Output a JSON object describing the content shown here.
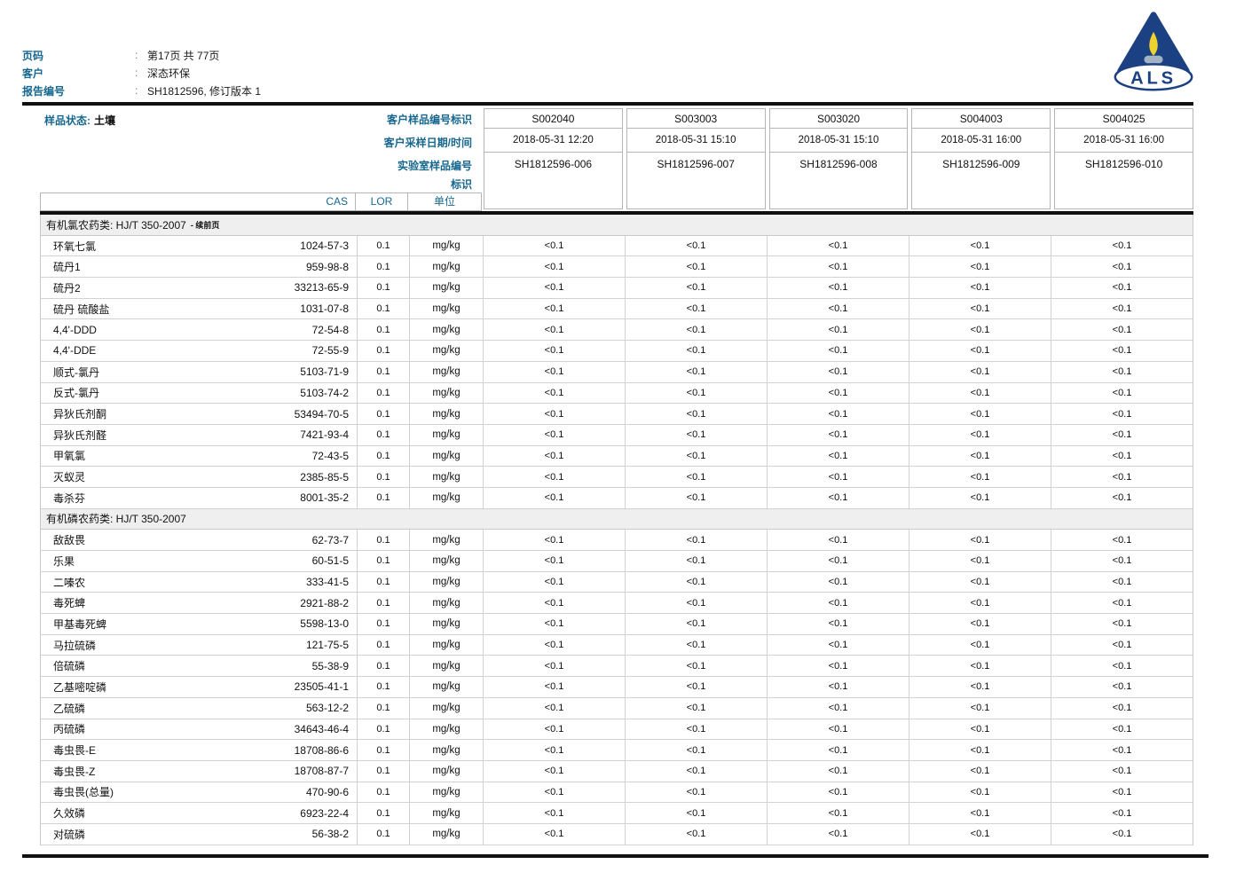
{
  "report_header": {
    "separator": ":",
    "fields": [
      {
        "label": "页码",
        "value": "第17页 共 77页"
      },
      {
        "label": "客户",
        "value": "深态环保"
      },
      {
        "label": "报告编号",
        "value": "SH1812596, 修订版本 1"
      }
    ]
  },
  "logo": {
    "letters": "ALS"
  },
  "sample_info": {
    "matrix_label": "样品状态:",
    "matrix_value": "土壤",
    "row_labels": [
      "客户样品编号标识",
      "客户采样日期/时间",
      "实验室样品编号",
      "标识"
    ],
    "samples": [
      {
        "client_id": "S002040",
        "datetime": "2018-05-31 12:20",
        "lab_id": "SH1812596-006"
      },
      {
        "client_id": "S003003",
        "datetime": "2018-05-31 15:10",
        "lab_id": "SH1812596-007"
      },
      {
        "client_id": "S003020",
        "datetime": "2018-05-31 15:10",
        "lab_id": "SH1812596-008"
      },
      {
        "client_id": "S004003",
        "datetime": "2018-05-31 16:00",
        "lab_id": "SH1812596-009"
      },
      {
        "client_id": "S004025",
        "datetime": "2018-05-31 16:00",
        "lab_id": "SH1812596-010"
      }
    ]
  },
  "table": {
    "header": {
      "cas": "CAS",
      "lor": "LOR",
      "unit": "单位"
    },
    "sections": [
      {
        "title": "有机氯农药类: HJ/T 350-2007",
        "suffix": "- 续前页",
        "rows": [
          {
            "name": "环氧七氯",
            "cas": "1024-57-3",
            "lor": "0.1",
            "unit": "mg/kg",
            "results": [
              "<0.1",
              "<0.1",
              "<0.1",
              "<0.1",
              "<0.1"
            ]
          },
          {
            "name": "硫丹1",
            "cas": "959-98-8",
            "lor": "0.1",
            "unit": "mg/kg",
            "results": [
              "<0.1",
              "<0.1",
              "<0.1",
              "<0.1",
              "<0.1"
            ]
          },
          {
            "name": "硫丹2",
            "cas": "33213-65-9",
            "lor": "0.1",
            "unit": "mg/kg",
            "results": [
              "<0.1",
              "<0.1",
              "<0.1",
              "<0.1",
              "<0.1"
            ]
          },
          {
            "name": "硫丹 硫酸盐",
            "cas": "1031-07-8",
            "lor": "0.1",
            "unit": "mg/kg",
            "results": [
              "<0.1",
              "<0.1",
              "<0.1",
              "<0.1",
              "<0.1"
            ]
          },
          {
            "name": "4,4'-DDD",
            "cas": "72-54-8",
            "lor": "0.1",
            "unit": "mg/kg",
            "results": [
              "<0.1",
              "<0.1",
              "<0.1",
              "<0.1",
              "<0.1"
            ]
          },
          {
            "name": "4,4'-DDE",
            "cas": "72-55-9",
            "lor": "0.1",
            "unit": "mg/kg",
            "results": [
              "<0.1",
              "<0.1",
              "<0.1",
              "<0.1",
              "<0.1"
            ]
          },
          {
            "name": "顺式-氯丹",
            "cas": "5103-71-9",
            "lor": "0.1",
            "unit": "mg/kg",
            "results": [
              "<0.1",
              "<0.1",
              "<0.1",
              "<0.1",
              "<0.1"
            ]
          },
          {
            "name": "反式-氯丹",
            "cas": "5103-74-2",
            "lor": "0.1",
            "unit": "mg/kg",
            "results": [
              "<0.1",
              "<0.1",
              "<0.1",
              "<0.1",
              "<0.1"
            ]
          },
          {
            "name": "异狄氏剂酮",
            "cas": "53494-70-5",
            "lor": "0.1",
            "unit": "mg/kg",
            "results": [
              "<0.1",
              "<0.1",
              "<0.1",
              "<0.1",
              "<0.1"
            ]
          },
          {
            "name": "异狄氏剂醛",
            "cas": "7421-93-4",
            "lor": "0.1",
            "unit": "mg/kg",
            "results": [
              "<0.1",
              "<0.1",
              "<0.1",
              "<0.1",
              "<0.1"
            ]
          },
          {
            "name": "甲氧氯",
            "cas": "72-43-5",
            "lor": "0.1",
            "unit": "mg/kg",
            "results": [
              "<0.1",
              "<0.1",
              "<0.1",
              "<0.1",
              "<0.1"
            ]
          },
          {
            "name": "灭蚁灵",
            "cas": "2385-85-5",
            "lor": "0.1",
            "unit": "mg/kg",
            "results": [
              "<0.1",
              "<0.1",
              "<0.1",
              "<0.1",
              "<0.1"
            ]
          },
          {
            "name": "毒杀芬",
            "cas": "8001-35-2",
            "lor": "0.1",
            "unit": "mg/kg",
            "results": [
              "<0.1",
              "<0.1",
              "<0.1",
              "<0.1",
              "<0.1"
            ]
          }
        ]
      },
      {
        "title": "有机磷农药类: HJ/T 350-2007",
        "suffix": "",
        "rows": [
          {
            "name": "敌敌畏",
            "cas": "62-73-7",
            "lor": "0.1",
            "unit": "mg/kg",
            "results": [
              "<0.1",
              "<0.1",
              "<0.1",
              "<0.1",
              "<0.1"
            ]
          },
          {
            "name": "乐果",
            "cas": "60-51-5",
            "lor": "0.1",
            "unit": "mg/kg",
            "results": [
              "<0.1",
              "<0.1",
              "<0.1",
              "<0.1",
              "<0.1"
            ]
          },
          {
            "name": "二嗪农",
            "cas": "333-41-5",
            "lor": "0.1",
            "unit": "mg/kg",
            "results": [
              "<0.1",
              "<0.1",
              "<0.1",
              "<0.1",
              "<0.1"
            ]
          },
          {
            "name": "毒死蜱",
            "cas": "2921-88-2",
            "lor": "0.1",
            "unit": "mg/kg",
            "results": [
              "<0.1",
              "<0.1",
              "<0.1",
              "<0.1",
              "<0.1"
            ]
          },
          {
            "name": "甲基毒死蜱",
            "cas": "5598-13-0",
            "lor": "0.1",
            "unit": "mg/kg",
            "results": [
              "<0.1",
              "<0.1",
              "<0.1",
              "<0.1",
              "<0.1"
            ]
          },
          {
            "name": "马拉硫磷",
            "cas": "121-75-5",
            "lor": "0.1",
            "unit": "mg/kg",
            "results": [
              "<0.1",
              "<0.1",
              "<0.1",
              "<0.1",
              "<0.1"
            ]
          },
          {
            "name": "倍硫磷",
            "cas": "55-38-9",
            "lor": "0.1",
            "unit": "mg/kg",
            "results": [
              "<0.1",
              "<0.1",
              "<0.1",
              "<0.1",
              "<0.1"
            ]
          },
          {
            "name": "乙基嘧啶磷",
            "cas": "23505-41-1",
            "lor": "0.1",
            "unit": "mg/kg",
            "results": [
              "<0.1",
              "<0.1",
              "<0.1",
              "<0.1",
              "<0.1"
            ]
          },
          {
            "name": "乙硫磷",
            "cas": "563-12-2",
            "lor": "0.1",
            "unit": "mg/kg",
            "results": [
              "<0.1",
              "<0.1",
              "<0.1",
              "<0.1",
              "<0.1"
            ]
          },
          {
            "name": "丙硫磷",
            "cas": "34643-46-4",
            "lor": "0.1",
            "unit": "mg/kg",
            "results": [
              "<0.1",
              "<0.1",
              "<0.1",
              "<0.1",
              "<0.1"
            ]
          },
          {
            "name": "毒虫畏-E",
            "cas": "18708-86-6",
            "lor": "0.1",
            "unit": "mg/kg",
            "results": [
              "<0.1",
              "<0.1",
              "<0.1",
              "<0.1",
              "<0.1"
            ]
          },
          {
            "name": "毒虫畏-Z",
            "cas": "18708-87-7",
            "lor": "0.1",
            "unit": "mg/kg",
            "results": [
              "<0.1",
              "<0.1",
              "<0.1",
              "<0.1",
              "<0.1"
            ]
          },
          {
            "name": "毒虫畏(总量)",
            "cas": "470-90-6",
            "lor": "0.1",
            "unit": "mg/kg",
            "results": [
              "<0.1",
              "<0.1",
              "<0.1",
              "<0.1",
              "<0.1"
            ]
          },
          {
            "name": "久效磷",
            "cas": "6923-22-4",
            "lor": "0.1",
            "unit": "mg/kg",
            "results": [
              "<0.1",
              "<0.1",
              "<0.1",
              "<0.1",
              "<0.1"
            ]
          },
          {
            "name": "对硫磷",
            "cas": "56-38-2",
            "lor": "0.1",
            "unit": "mg/kg",
            "results": [
              "<0.1",
              "<0.1",
              "<0.1",
              "<0.1",
              "<0.1"
            ]
          }
        ]
      }
    ]
  },
  "colors": {
    "accent_blue": "#17678e",
    "logo_navy": "#1c4182",
    "logo_flame": "#f0d22f",
    "logo_candle_base": "#a3b2c4",
    "section_header_bg": "#efefef",
    "rule_black": "#101010",
    "border_gray": "#c8c8c8"
  }
}
